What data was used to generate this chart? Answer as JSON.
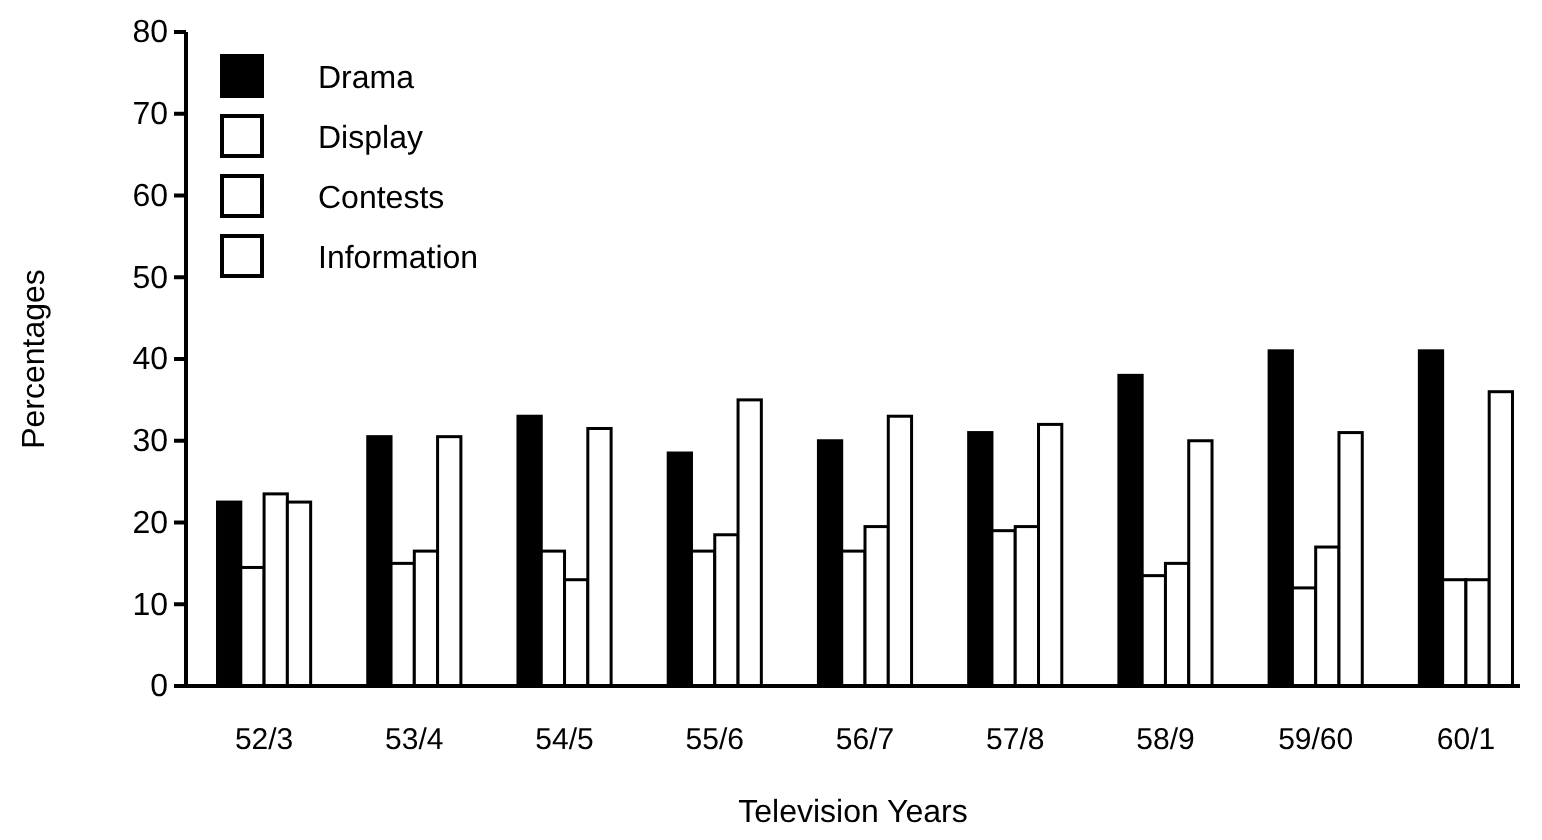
{
  "chart_data": {
    "type": "bar",
    "xlabel": "Television Years",
    "ylabel": "Percentages",
    "categories": [
      "52/3",
      "53/4",
      "54/5",
      "55/6",
      "56/7",
      "57/8",
      "58/9",
      "59/60",
      "60/1"
    ],
    "series": [
      {
        "name": "Drama",
        "color": "#000000",
        "values": [
          22.5,
          30.5,
          33,
          28.5,
          30,
          31,
          38,
          41,
          41
        ]
      },
      {
        "name": "Display",
        "color": "#ffffff",
        "values": [
          14.5,
          15,
          16.5,
          16.5,
          16.5,
          19,
          13.5,
          12,
          13
        ]
      },
      {
        "name": "Contests",
        "color": "#ffffff",
        "values": [
          23.5,
          16.5,
          13,
          18.5,
          19.5,
          19.5,
          15,
          17,
          13
        ]
      },
      {
        "name": "Information",
        "color": "#ffffff",
        "values": [
          22.5,
          30.5,
          31.5,
          35,
          33,
          32,
          30,
          31,
          36
        ]
      }
    ],
    "ylim": [
      0,
      80
    ],
    "yticks": [
      0,
      10,
      20,
      30,
      40,
      50,
      60,
      70,
      80
    ],
    "grid": false,
    "legend": "top left"
  }
}
